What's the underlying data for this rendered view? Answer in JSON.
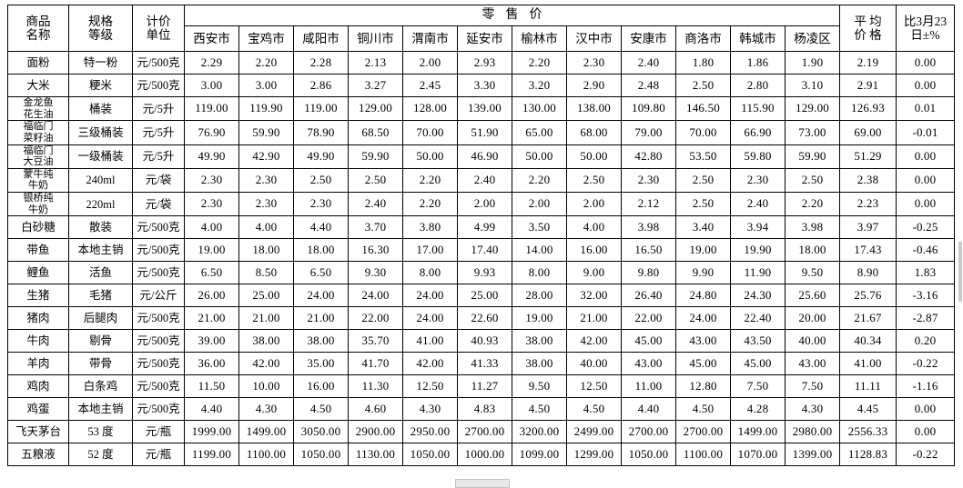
{
  "table": {
    "header": {
      "col_product": "商品\n名称",
      "col_spec": "规格\n等级",
      "col_unit": "计价\n单位",
      "retail_group": "零售价",
      "cities": [
        "西安市",
        "宝鸡市",
        "咸阳市",
        "铜川市",
        "渭南市",
        "延安市",
        "榆林市",
        "汉中市",
        "安康市",
        "商洛市",
        "韩城市",
        "杨凌区"
      ],
      "col_avg": "平 均\n价 格",
      "col_change": "比3月23\n日±%"
    },
    "rows": [
      {
        "name": "面粉",
        "spec": "特一粉",
        "unit": "元/500克",
        "prices": [
          "2.29",
          "2.20",
          "2.28",
          "2.13",
          "2.00",
          "2.93",
          "2.20",
          "2.30",
          "2.40",
          "1.80",
          "1.86",
          "1.90"
        ],
        "avg": "2.19",
        "change": "0.00"
      },
      {
        "name": "大米",
        "spec": "粳米",
        "unit": "元/500克",
        "prices": [
          "3.00",
          "3.00",
          "2.86",
          "3.27",
          "2.45",
          "3.30",
          "3.20",
          "2.90",
          "2.48",
          "2.50",
          "2.80",
          "3.10"
        ],
        "avg": "2.91",
        "change": "0.00"
      },
      {
        "name": "金龙鱼\n花生油",
        "spec": "桶装",
        "unit": "元/5升",
        "prices": [
          "119.00",
          "119.90",
          "119.00",
          "129.00",
          "128.00",
          "139.00",
          "130.00",
          "138.00",
          "109.80",
          "146.50",
          "115.90",
          "129.00"
        ],
        "avg": "126.93",
        "change": "0.01"
      },
      {
        "name": "福临门\n菜籽油",
        "spec": "三级桶装",
        "unit": "元/5升",
        "prices": [
          "76.90",
          "59.90",
          "78.90",
          "68.50",
          "70.00",
          "51.90",
          "65.00",
          "68.00",
          "79.00",
          "70.00",
          "66.90",
          "73.00"
        ],
        "avg": "69.00",
        "change": "-0.01"
      },
      {
        "name": "福临门\n大豆油",
        "spec": "一级桶装",
        "unit": "元/5升",
        "prices": [
          "49.90",
          "42.90",
          "49.90",
          "59.90",
          "50.00",
          "46.90",
          "50.00",
          "50.00",
          "42.80",
          "53.50",
          "59.80",
          "59.90"
        ],
        "avg": "51.29",
        "change": "0.00"
      },
      {
        "name": "蒙牛纯\n牛奶",
        "spec": "240ml",
        "unit": "元/袋",
        "prices": [
          "2.30",
          "2.30",
          "2.50",
          "2.50",
          "2.20",
          "2.40",
          "2.20",
          "2.50",
          "2.30",
          "2.50",
          "2.30",
          "2.50"
        ],
        "avg": "2.38",
        "change": "0.00"
      },
      {
        "name": "银桥纯\n牛奶",
        "spec": "220ml",
        "unit": "元/袋",
        "prices": [
          "2.30",
          "2.30",
          "2.30",
          "2.40",
          "2.20",
          "2.00",
          "2.00",
          "2.00",
          "2.12",
          "2.50",
          "2.40",
          "2.20"
        ],
        "avg": "2.23",
        "change": "0.00"
      },
      {
        "name": "白砂糖",
        "spec": "散装",
        "unit": "元/500克",
        "prices": [
          "4.00",
          "4.00",
          "4.40",
          "3.70",
          "3.80",
          "4.99",
          "3.50",
          "4.00",
          "3.98",
          "3.40",
          "3.94",
          "3.98"
        ],
        "avg": "3.97",
        "change": "-0.25"
      },
      {
        "name": "带鱼",
        "spec": "本地主销",
        "unit": "元/500克",
        "prices": [
          "19.00",
          "18.00",
          "18.00",
          "16.30",
          "17.00",
          "17.40",
          "14.00",
          "16.00",
          "16.50",
          "19.00",
          "19.90",
          "18.00"
        ],
        "avg": "17.43",
        "change": "-0.46"
      },
      {
        "name": "鲤鱼",
        "spec": "活鱼",
        "unit": "元/500克",
        "prices": [
          "6.50",
          "8.50",
          "6.50",
          "9.30",
          "8.00",
          "9.93",
          "8.00",
          "9.00",
          "9.80",
          "9.90",
          "11.90",
          "9.50"
        ],
        "avg": "8.90",
        "change": "1.83"
      },
      {
        "name": "生猪",
        "spec": "毛猪",
        "unit": "元/公斤",
        "prices": [
          "26.00",
          "25.00",
          "24.00",
          "24.00",
          "24.00",
          "25.00",
          "28.00",
          "32.00",
          "26.40",
          "24.80",
          "24.30",
          "25.60"
        ],
        "avg": "25.76",
        "change": "-3.16"
      },
      {
        "name": "猪肉",
        "spec": "后腿肉",
        "unit": "元/500克",
        "prices": [
          "21.00",
          "21.00",
          "21.00",
          "22.00",
          "24.00",
          "22.60",
          "19.00",
          "21.00",
          "22.00",
          "24.00",
          "22.40",
          "20.00"
        ],
        "avg": "21.67",
        "change": "-2.87"
      },
      {
        "name": "牛肉",
        "spec": "剔骨",
        "unit": "元/500克",
        "prices": [
          "39.00",
          "38.00",
          "38.00",
          "35.70",
          "41.00",
          "40.93",
          "38.00",
          "42.00",
          "45.00",
          "43.00",
          "43.50",
          "40.00"
        ],
        "avg": "40.34",
        "change": "0.20"
      },
      {
        "name": "羊肉",
        "spec": "带骨",
        "unit": "元/500克",
        "prices": [
          "36.00",
          "42.00",
          "35.00",
          "41.70",
          "42.00",
          "41.33",
          "38.00",
          "40.00",
          "43.00",
          "45.00",
          "45.00",
          "43.00"
        ],
        "avg": "41.00",
        "change": "-0.22"
      },
      {
        "name": "鸡肉",
        "spec": "白条鸡",
        "unit": "元/500克",
        "prices": [
          "11.50",
          "10.00",
          "16.00",
          "11.30",
          "12.50",
          "11.27",
          "9.50",
          "12.50",
          "11.00",
          "12.80",
          "7.50",
          "7.50"
        ],
        "avg": "11.11",
        "change": "-1.16"
      },
      {
        "name": "鸡蛋",
        "spec": "本地主销",
        "unit": "元/500克",
        "prices": [
          "4.40",
          "4.30",
          "4.50",
          "4.60",
          "4.30",
          "4.83",
          "4.50",
          "4.50",
          "4.40",
          "4.50",
          "4.28",
          "4.30"
        ],
        "avg": "4.45",
        "change": "0.00"
      },
      {
        "name": "飞天茅台",
        "spec": "53 度",
        "unit": "元/瓶",
        "prices": [
          "1999.00",
          "1499.00",
          "3050.00",
          "2900.00",
          "2950.00",
          "2700.00",
          "3200.00",
          "2499.00",
          "2700.00",
          "2700.00",
          "1499.00",
          "2980.00"
        ],
        "avg": "2556.33",
        "change": "0.00"
      },
      {
        "name": "五粮液",
        "spec": "52 度",
        "unit": "元/瓶",
        "prices": [
          "1199.00",
          "1100.00",
          "1050.00",
          "1130.00",
          "1050.00",
          "1000.00",
          "1099.00",
          "1299.00",
          "1050.00",
          "1100.00",
          "1070.00",
          "1399.00"
        ],
        "avg": "1128.83",
        "change": "-0.22"
      }
    ]
  }
}
